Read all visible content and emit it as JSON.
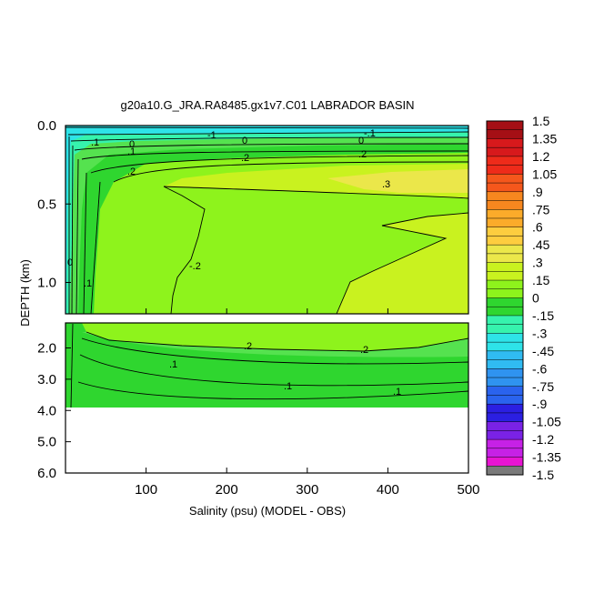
{
  "chart_data": {
    "type": "heatmap",
    "title": "g20a10.G_JRA.RA8485.gx1v7.C01 LABRADOR BASIN",
    "xlabel": "Salinity (psu) (MODEL - OBS)",
    "ylabel": "DEPTH (km)",
    "xlim": [
      0,
      500
    ],
    "x_ticks": [
      100,
      200,
      300,
      400,
      500
    ],
    "upper_panel": {
      "ylim": [
        0.0,
        1.2
      ],
      "y_ticks": [
        "0.0",
        "0.5",
        "1.0"
      ],
      "y_tick_values": [
        0.0,
        0.5,
        1.0
      ]
    },
    "lower_panel": {
      "ylim": [
        1.2,
        6.0
      ],
      "y_ticks": [
        "2.0",
        "3.0",
        "4.0",
        "5.0",
        "6.0"
      ],
      "y_tick_values": [
        2.0,
        3.0,
        4.0,
        5.0,
        6.0
      ],
      "data_max_depth": 3.9
    },
    "colorbar": {
      "labels": [
        "1.5",
        "1.35",
        "1.2",
        "1.05",
        ".9",
        ".75",
        ".6",
        ".45",
        ".3",
        ".15",
        "0",
        "-.15",
        "-.3",
        "-.45",
        "-.6",
        "-.75",
        "-.9",
        "-1.05",
        "-1.2",
        "-1.35",
        "-1.5"
      ],
      "levels": [
        1.5,
        1.35,
        1.2,
        1.05,
        0.9,
        0.75,
        0.6,
        0.45,
        0.3,
        0.15,
        0,
        -0.15,
        -0.3,
        -0.45,
        -0.6,
        -0.75,
        -0.9,
        -1.05,
        -1.2,
        -1.35,
        -1.5
      ],
      "colors": [
        "#a50f15",
        "#d7191c",
        "#ee2b1a",
        "#f5571c",
        "#f7871f",
        "#fbab2a",
        "#fdcd3f",
        "#ebe74a",
        "#c9f21f",
        "#8ef31c",
        "#2fd62f",
        "#36f3ad",
        "#2ee3e8",
        "#30bbf2",
        "#2f93f0",
        "#2a63ee",
        "#2b1fe2",
        "#7a22e6",
        "#c621e6",
        "#e814d2",
        "#d9d9d9",
        "#7a7a7a"
      ]
    },
    "contour_labels": [
      ".1",
      "0",
      "-1",
      "0",
      "-.1",
      ".1",
      ".2",
      ".2",
      "0",
      ".2",
      ".3",
      "-.2",
      ".1",
      "0",
      ".2",
      ".2",
      ".1",
      ".1",
      ".1"
    ]
  }
}
